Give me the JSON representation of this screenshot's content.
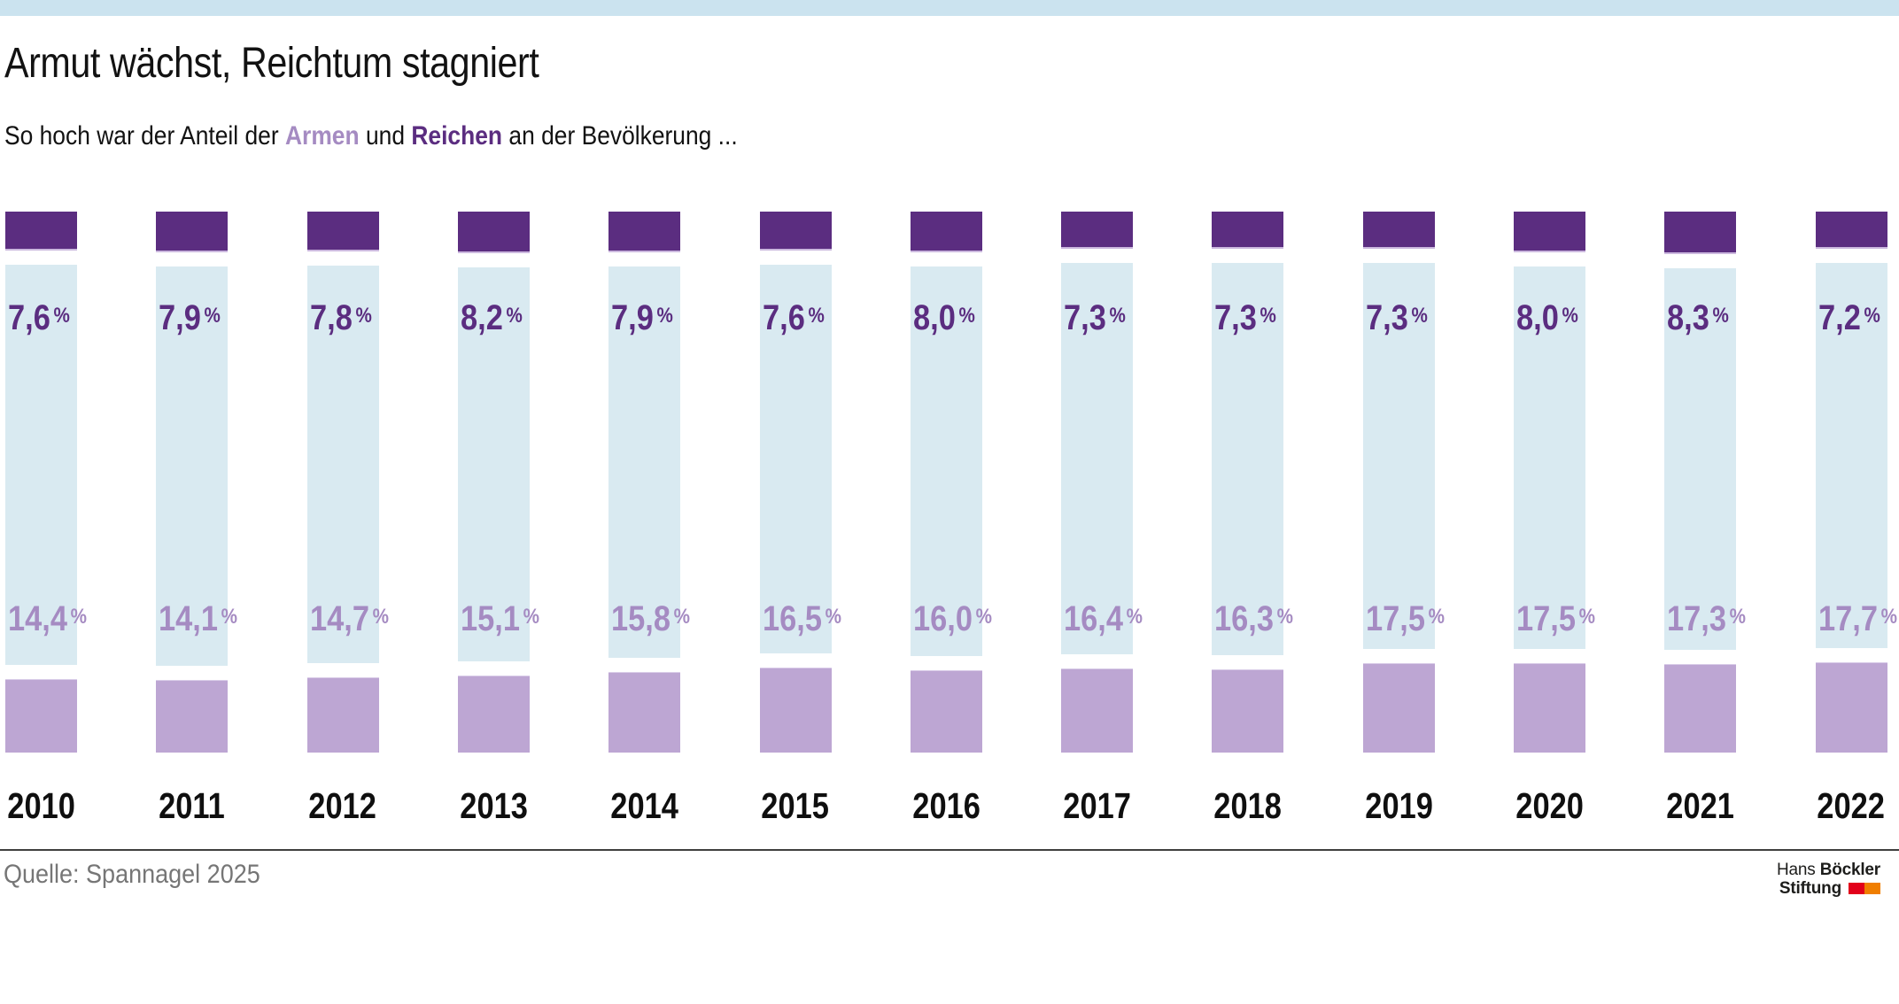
{
  "header": {
    "strip_color": "#cbe3ef",
    "title": "Armut wächst, Reichtum stagniert",
    "subtitle_prefix": "So hoch war der Anteil der ",
    "subtitle_poor_word": "Armen",
    "subtitle_mid": " und ",
    "subtitle_rich_word": "Reichen",
    "subtitle_suffix": " an der Bevölkerung ..."
  },
  "chart_data": {
    "type": "bar",
    "variant": "stacked-column-100-percent",
    "title": "Armut wächst, Reichtum stagniert",
    "subtitle": "So hoch war der Anteil der Armen und Reichen an der Bevölkerung ...",
    "categories": [
      "2010",
      "2011",
      "2012",
      "2013",
      "2014",
      "2015",
      "2016",
      "2017",
      "2018",
      "2019",
      "2020",
      "2021",
      "2022"
    ],
    "unit": "%",
    "ylim": [
      0,
      100
    ],
    "axis": "none",
    "grid": false,
    "legend": "inline-in-subtitle",
    "series": [
      {
        "name": "Reiche",
        "position": "top",
        "color": "#5b2d80",
        "label_color": "#5b2d80",
        "values": [
          7.6,
          7.9,
          7.8,
          8.2,
          7.9,
          7.6,
          8.0,
          7.3,
          7.3,
          7.3,
          8.0,
          8.3,
          7.2
        ],
        "labels": [
          "7,6",
          "7,9",
          "7,8",
          "8,2",
          "7,9",
          "7,6",
          "8,0",
          "7,3",
          "7,3",
          "7,3",
          "8,0",
          "8,3",
          "7,2"
        ]
      },
      {
        "name": "Arme",
        "position": "bottom",
        "color": "#bda6d3",
        "label_color": "#a58bc2",
        "values": [
          14.4,
          14.1,
          14.7,
          15.1,
          15.8,
          16.5,
          16.0,
          16.4,
          16.3,
          17.5,
          17.5,
          17.3,
          17.7
        ],
        "labels": [
          "14,4",
          "14,1",
          "14,7",
          "15,1",
          "15,8",
          "16,5",
          "16,0",
          "16,4",
          "16,3",
          "17,5",
          "17,5",
          "17,3",
          "17,7"
        ]
      }
    ],
    "filler_color": "#d9eaf1"
  },
  "footer": {
    "source": "Quelle: Spannagel 2025",
    "divider_color": "#3f3f3e",
    "logo": {
      "line1_regular": "Hans",
      "line1_bold": "Böckler",
      "line2_bold": "Stiftung",
      "mark_red": "#e2001a",
      "mark_orange": "#f07e00"
    }
  }
}
